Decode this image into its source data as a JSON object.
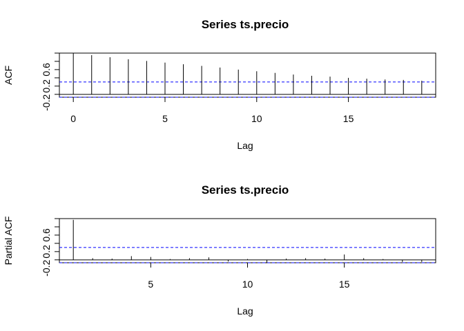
{
  "chart_data": [
    {
      "type": "bar",
      "title": "Series  ts.precio",
      "xlabel": "Lag",
      "ylabel": "ACF",
      "x": [
        0,
        1,
        2,
        3,
        4,
        5,
        6,
        7,
        8,
        9,
        10,
        11,
        12,
        13,
        14,
        15,
        16,
        17,
        18,
        19
      ],
      "values": [
        1.0,
        0.95,
        0.9,
        0.85,
        0.81,
        0.77,
        0.73,
        0.69,
        0.65,
        0.6,
        0.56,
        0.52,
        0.48,
        0.45,
        0.43,
        0.4,
        0.38,
        0.36,
        0.35,
        0.33
      ],
      "confidence_band": [
        -0.07,
        0.3
      ],
      "xlim": [
        -0.76,
        19.76
      ],
      "ylim": [
        -0.07,
        1.0
      ],
      "xticks": [
        0,
        5,
        10,
        15
      ],
      "xtick_labels": [
        "0",
        "5",
        "10",
        "15"
      ],
      "yticks": [
        -0.2,
        0.2,
        0.6
      ],
      "ytick_labels": [
        "-0.2",
        "0.2",
        "0.6"
      ],
      "colors": {
        "bars": "#000000",
        "confidence": "#0000ff"
      }
    },
    {
      "type": "bar",
      "title": "Series  ts.precio",
      "xlabel": "Lag",
      "ylabel": "Partial ACF",
      "x": [
        1,
        2,
        3,
        4,
        5,
        6,
        7,
        8,
        9,
        10,
        11,
        12,
        13,
        14,
        15,
        16,
        17,
        18,
        19
      ],
      "values": [
        0.97,
        0.04,
        0.03,
        0.09,
        0.07,
        0.02,
        0.04,
        0.06,
        -0.04,
        0.02,
        -0.08,
        0.03,
        0.04,
        0.03,
        0.13,
        0.04,
        0.02,
        -0.05,
        -0.05
      ],
      "confidence_band": [
        -0.07,
        0.3
      ],
      "xlim": [
        0.28,
        19.72
      ],
      "ylim": [
        -0.07,
        1.0
      ],
      "xticks": [
        5,
        10,
        15
      ],
      "xtick_labels": [
        "5",
        "10",
        "15"
      ],
      "yticks": [
        -0.2,
        0.2,
        0.6
      ],
      "ytick_labels": [
        "-0.2",
        "0.2",
        "0.6"
      ],
      "colors": {
        "bars": "#000000",
        "confidence": "#0000ff"
      }
    }
  ]
}
